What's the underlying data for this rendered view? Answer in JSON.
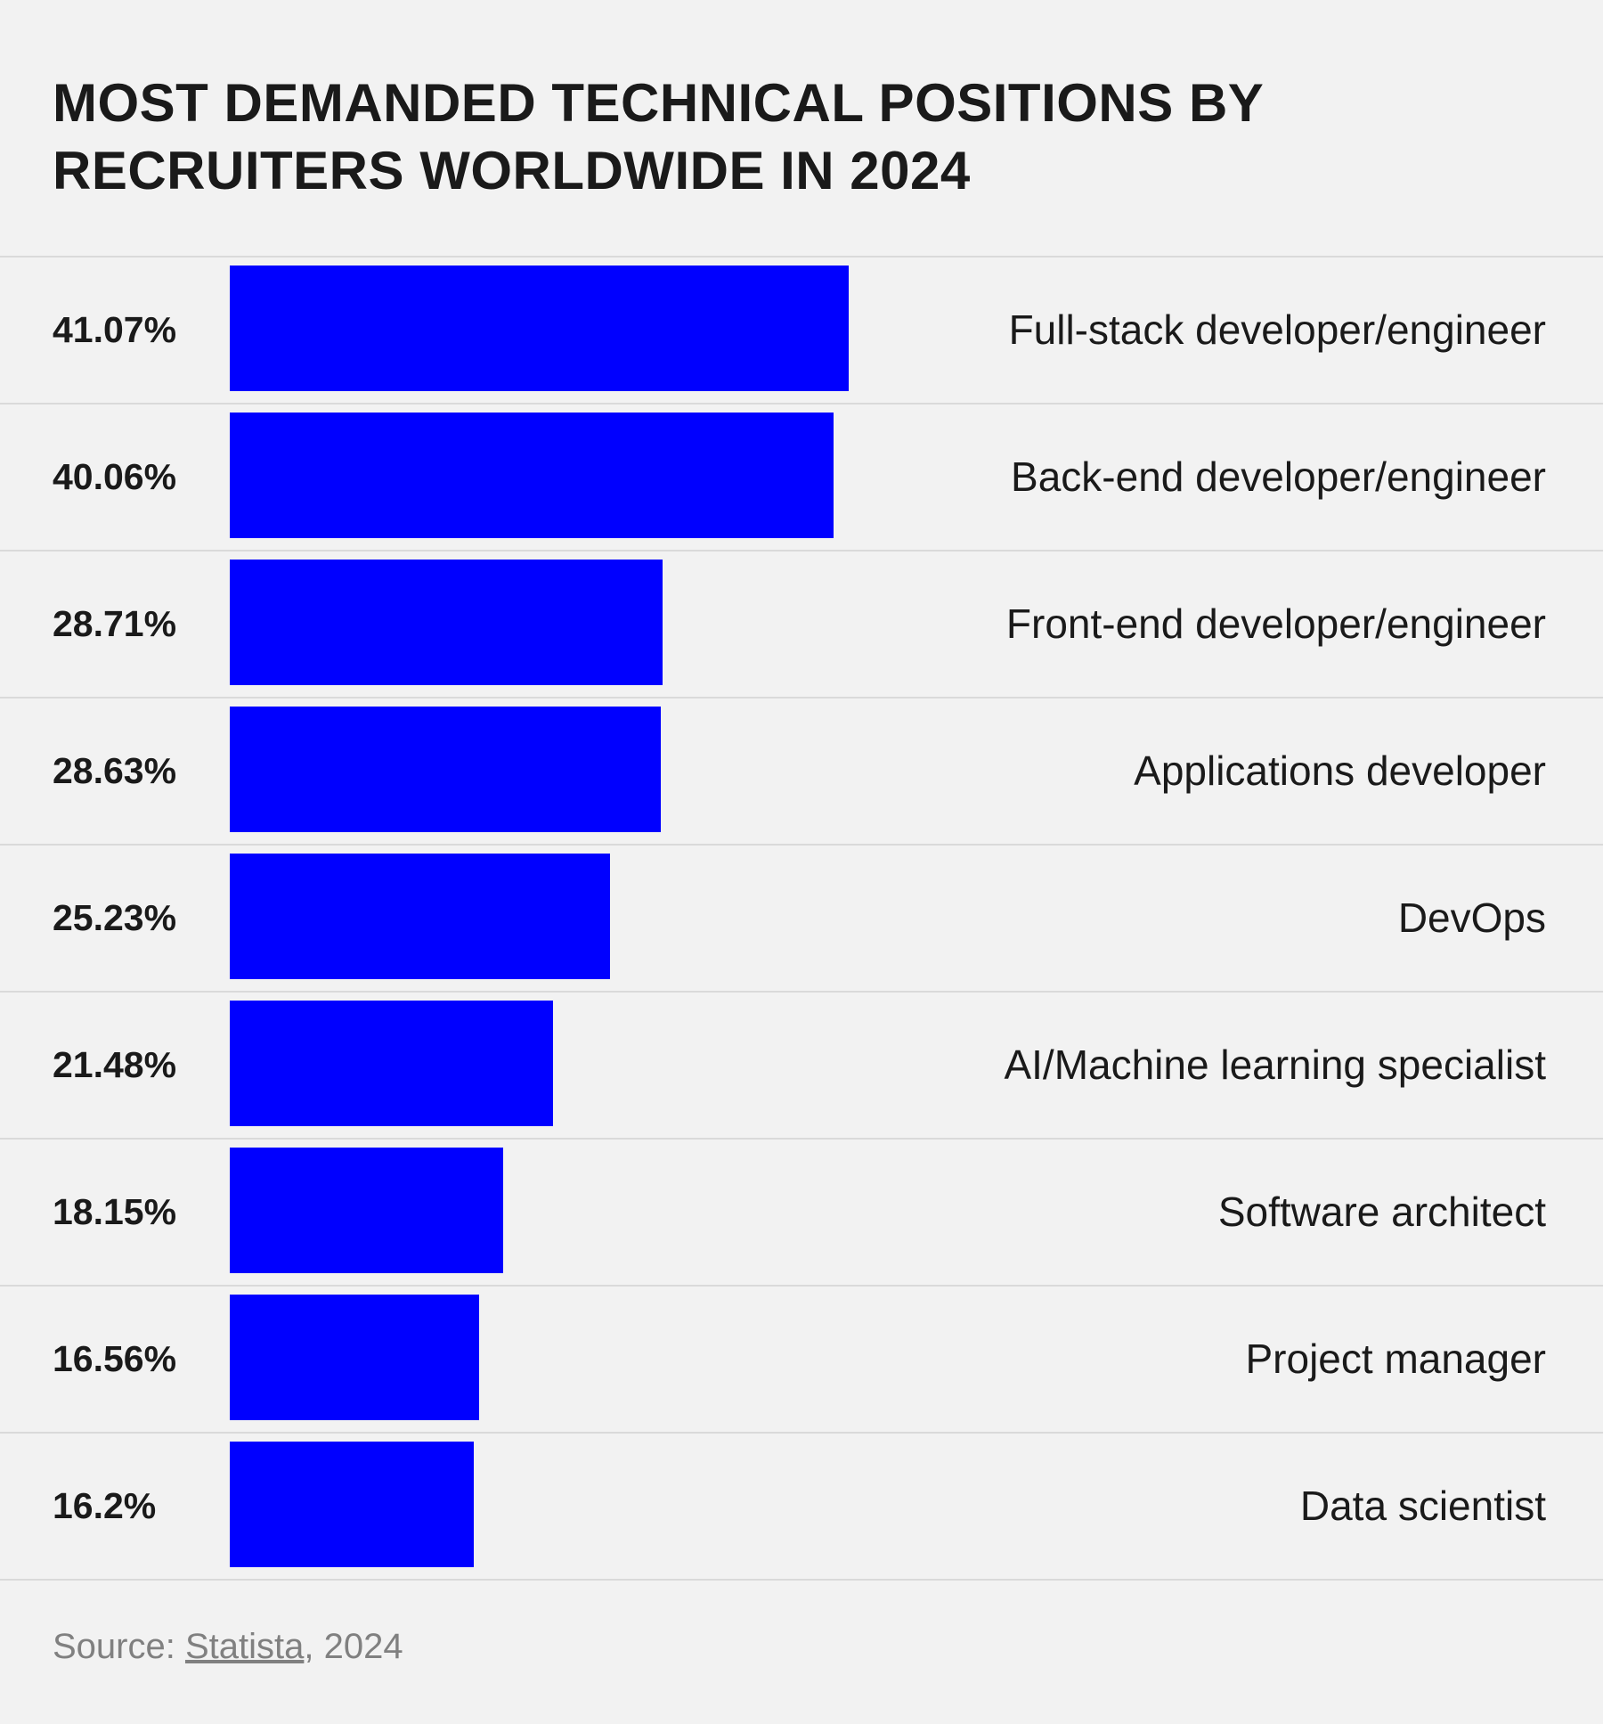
{
  "chart_data": {
    "type": "bar",
    "orientation": "horizontal",
    "title": "Most demanded technical positions by recruiters worldwide in 2024",
    "categories": [
      "Full-stack developer/engineer",
      "Back-end developer/engineer",
      "Front-end developer/engineer",
      "Applications developer",
      "DevOps",
      "AI/Machine learning specialist",
      "Software architect",
      "Project manager",
      "Data scientist"
    ],
    "values": [
      41.07,
      40.06,
      28.71,
      28.63,
      25.23,
      21.48,
      18.15,
      16.56,
      16.2
    ],
    "value_labels": [
      "41.07%",
      "40.06%",
      "28.71%",
      "28.63%",
      "25.23%",
      "21.48%",
      "18.15%",
      "16.56%",
      "16.2%"
    ],
    "bar_color": "#0000ff",
    "grid": false,
    "legend": "none"
  },
  "source": {
    "prefix": "Source: ",
    "link": "Statista",
    "suffix": ", 2024"
  }
}
